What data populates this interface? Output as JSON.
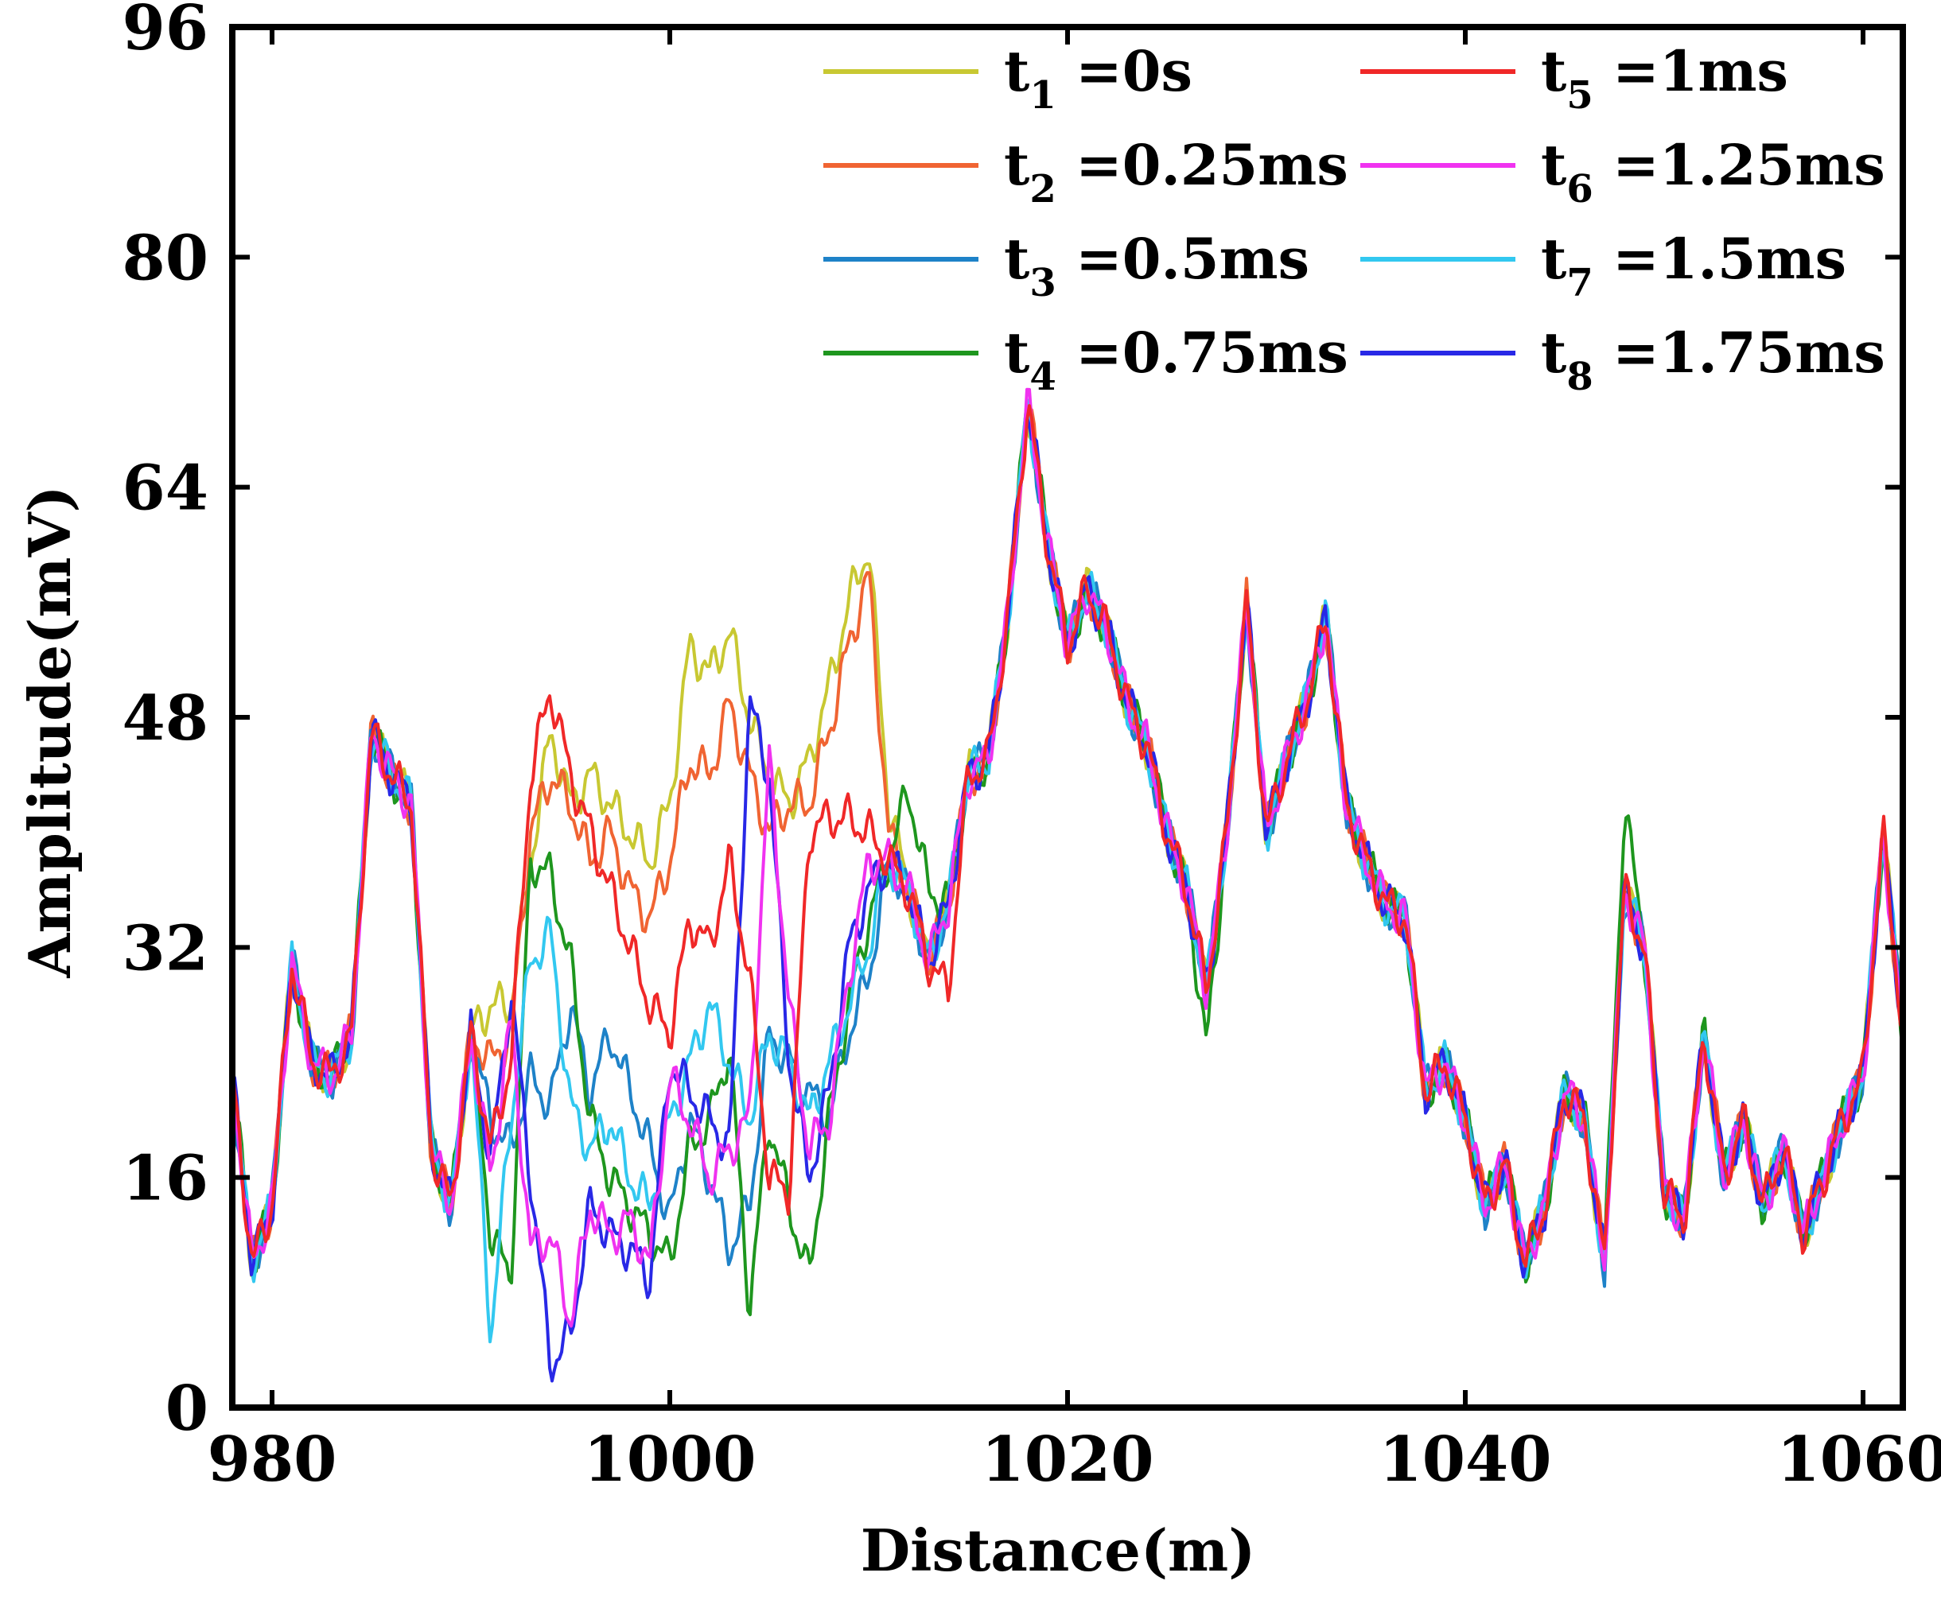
{
  "chart_data": {
    "type": "line",
    "title": "",
    "xlabel": "Distance(m)",
    "ylabel": "Amplitude(mV)",
    "xlim": [
      978,
      1062
    ],
    "ylim": [
      0,
      96
    ],
    "xticks": [
      980,
      1000,
      1020,
      1040,
      1060
    ],
    "yticks": [
      0,
      16,
      32,
      48,
      64,
      80,
      96
    ],
    "xtick_labels": [
      "980",
      "1000",
      "1020",
      "1040",
      "1060"
    ],
    "ytick_labels": [
      "0",
      "16",
      "32",
      "48",
      "64",
      "80",
      "96"
    ],
    "grid": false,
    "legend_position": "top-right",
    "base_x": [
      978,
      979,
      980,
      981,
      982,
      983,
      984,
      985,
      986,
      987,
      988,
      989,
      990,
      991,
      992,
      993,
      994,
      995,
      996,
      997,
      998,
      999,
      1000,
      1001,
      1002,
      1003,
      1004,
      1005,
      1006,
      1007,
      1008,
      1009,
      1010,
      1011,
      1012,
      1013,
      1014,
      1015,
      1016,
      1017,
      1018,
      1019,
      1020,
      1021,
      1022,
      1023,
      1024,
      1025,
      1026,
      1027,
      1028,
      1029,
      1030,
      1031,
      1032,
      1033,
      1034,
      1035,
      1036,
      1037,
      1038,
      1039,
      1040,
      1041,
      1042,
      1043,
      1044,
      1045,
      1046,
      1047,
      1048,
      1049,
      1050,
      1051,
      1052,
      1053,
      1054,
      1055,
      1056,
      1057,
      1058,
      1059,
      1060,
      1061,
      1062
    ],
    "base_y": [
      23,
      10,
      14,
      31,
      24,
      23,
      26,
      47,
      44,
      42,
      18,
      14,
      26,
      22,
      24,
      38,
      34,
      27,
      25,
      23,
      20,
      13,
      24,
      23,
      28,
      25,
      22,
      36,
      22,
      22,
      28,
      31,
      35,
      38,
      36,
      31,
      35,
      44,
      45,
      55,
      70,
      60,
      53,
      57,
      54,
      49,
      46,
      40,
      36,
      29,
      40,
      56,
      40,
      45,
      49,
      55,
      42,
      38,
      35,
      34,
      22,
      24,
      20,
      14,
      17,
      10,
      14,
      22,
      20,
      10,
      36,
      32,
      15,
      13,
      26,
      16,
      20,
      14,
      18,
      12,
      16,
      20,
      23,
      40,
      26
    ],
    "series": [
      {
        "label_main": "t",
        "label_sub": "1",
        "label_rest": " =0s",
        "color": "#c8c832",
        "deviations": [
          [
            991,
            28
          ],
          [
            992,
            28
          ],
          [
            993,
            38
          ],
          [
            994,
            47
          ],
          [
            995,
            42
          ],
          [
            996,
            44
          ],
          [
            997,
            42
          ],
          [
            998,
            40
          ],
          [
            999,
            38
          ],
          [
            1000,
            42
          ],
          [
            1001,
            53
          ],
          [
            1002,
            51
          ],
          [
            1003,
            54
          ],
          [
            1004,
            48
          ],
          [
            1005,
            44
          ],
          [
            1006,
            42
          ],
          [
            1007,
            45
          ],
          [
            1008,
            50
          ],
          [
            1009,
            56
          ],
          [
            1010,
            60
          ],
          [
            1011,
            42
          ]
        ]
      },
      {
        "label_main": "t",
        "label_sub": "2",
        "label_rest": " =0.25ms",
        "color": "#f06432",
        "deviations": [
          [
            991,
            24
          ],
          [
            992,
            26
          ],
          [
            993,
            40
          ],
          [
            994,
            44
          ],
          [
            995,
            42
          ],
          [
            996,
            38
          ],
          [
            997,
            40
          ],
          [
            998,
            36
          ],
          [
            999,
            34
          ],
          [
            1000,
            38
          ],
          [
            1001,
            45
          ],
          [
            1002,
            44
          ],
          [
            1003,
            49
          ],
          [
            1004,
            44
          ],
          [
            1005,
            40
          ],
          [
            1006,
            42
          ],
          [
            1007,
            42
          ],
          [
            1008,
            47
          ],
          [
            1009,
            53
          ],
          [
            1010,
            58
          ],
          [
            1011,
            40
          ]
        ]
      },
      {
        "label_main": "t",
        "label_sub": "3",
        "label_rest": " =0.5ms",
        "color": "#1e82c8",
        "deviations": [
          [
            991,
            20
          ],
          [
            992,
            18
          ],
          [
            993,
            23
          ],
          [
            994,
            21
          ],
          [
            995,
            28
          ],
          [
            996,
            22
          ],
          [
            997,
            26
          ],
          [
            998,
            22
          ],
          [
            999,
            18
          ],
          [
            1000,
            13
          ],
          [
            1001,
            20
          ],
          [
            1002,
            16
          ],
          [
            1003,
            11
          ],
          [
            1004,
            14
          ],
          [
            1005,
            26
          ],
          [
            1006,
            24
          ],
          [
            1007,
            22
          ],
          [
            1008,
            20
          ],
          [
            1009,
            26
          ],
          [
            1010,
            30
          ]
        ]
      },
      {
        "label_main": "t",
        "label_sub": "4",
        "label_rest": " =0.75ms",
        "color": "#1e961e",
        "deviations": [
          [
            991,
            12
          ],
          [
            992,
            9
          ],
          [
            993,
            38
          ],
          [
            994,
            37
          ],
          [
            995,
            31
          ],
          [
            996,
            20
          ],
          [
            997,
            16
          ],
          [
            998,
            14
          ],
          [
            999,
            12
          ],
          [
            1000,
            10
          ],
          [
            1001,
            18
          ],
          [
            1002,
            20
          ],
          [
            1003,
            25
          ],
          [
            1004,
            7
          ],
          [
            1005,
            20
          ],
          [
            1006,
            14
          ],
          [
            1007,
            9
          ],
          [
            1008,
            20
          ],
          [
            1009,
            28
          ],
          [
            1010,
            34
          ],
          [
            1012,
            43
          ],
          [
            1013,
            36
          ],
          [
            1027,
            25
          ],
          [
            1048,
            42
          ]
        ]
      },
      {
        "label_main": "t",
        "label_sub": "5",
        "label_rest": " =1ms",
        "color": "#f02828",
        "deviations": [
          [
            991,
            18
          ],
          [
            992,
            24
          ],
          [
            993,
            44
          ],
          [
            994,
            50
          ],
          [
            995,
            44
          ],
          [
            996,
            40
          ],
          [
            997,
            36
          ],
          [
            998,
            32
          ],
          [
            999,
            28
          ],
          [
            1000,
            26
          ],
          [
            1001,
            34
          ],
          [
            1002,
            32
          ],
          [
            1003,
            38
          ],
          [
            1004,
            30
          ],
          [
            1005,
            16
          ],
          [
            1006,
            15
          ],
          [
            1007,
            40
          ],
          [
            1008,
            41
          ],
          [
            1009,
            41
          ],
          [
            1010,
            40
          ],
          [
            1014,
            29
          ]
        ]
      },
      {
        "label_main": "t",
        "label_sub": "6",
        "label_rest": " =1.25ms",
        "color": "#f032f0",
        "deviations": [
          [
            991,
            16
          ],
          [
            992,
            27
          ],
          [
            993,
            11
          ],
          [
            994,
            12
          ],
          [
            995,
            6
          ],
          [
            996,
            14
          ],
          [
            997,
            12
          ],
          [
            998,
            13
          ],
          [
            999,
            10
          ],
          [
            1000,
            23
          ],
          [
            1001,
            20
          ],
          [
            1002,
            16
          ],
          [
            1003,
            18
          ],
          [
            1004,
            20
          ],
          [
            1005,
            45
          ],
          [
            1006,
            28
          ],
          [
            1007,
            18
          ],
          [
            1008,
            20
          ],
          [
            1009,
            30
          ],
          [
            1010,
            38
          ]
        ]
      },
      {
        "label_main": "t",
        "label_sub": "7",
        "label_rest": " =1.5ms",
        "color": "#32c8f0",
        "deviations": [
          [
            991,
            5
          ],
          [
            992,
            20
          ],
          [
            993,
            31
          ],
          [
            994,
            33
          ],
          [
            995,
            21
          ],
          [
            996,
            18
          ],
          [
            997,
            20
          ],
          [
            998,
            16
          ],
          [
            999,
            14
          ],
          [
            1000,
            20
          ],
          [
            1001,
            24
          ],
          [
            1002,
            28
          ],
          [
            1003,
            24
          ],
          [
            1004,
            20
          ],
          [
            1005,
            26
          ],
          [
            1006,
            24
          ],
          [
            1007,
            20
          ],
          [
            1008,
            24
          ],
          [
            1009,
            28
          ],
          [
            1010,
            32
          ]
        ]
      },
      {
        "label_main": "t",
        "label_sub": "8",
        "label_rest": " =1.75ms",
        "color": "#2828e6",
        "deviations": [
          [
            991,
            17
          ],
          [
            992,
            29
          ],
          [
            993,
            16
          ],
          [
            994,
            3
          ],
          [
            995,
            5
          ],
          [
            996,
            14
          ],
          [
            997,
            12
          ],
          [
            998,
            11
          ],
          [
            999,
            9
          ],
          [
            1000,
            24
          ],
          [
            1001,
            22
          ],
          [
            1002,
            20
          ],
          [
            1003,
            18
          ],
          [
            1004,
            49
          ],
          [
            1005,
            44
          ],
          [
            1006,
            24
          ],
          [
            1007,
            16
          ],
          [
            1008,
            22
          ],
          [
            1009,
            32
          ],
          [
            1010,
            36
          ]
        ]
      }
    ]
  }
}
